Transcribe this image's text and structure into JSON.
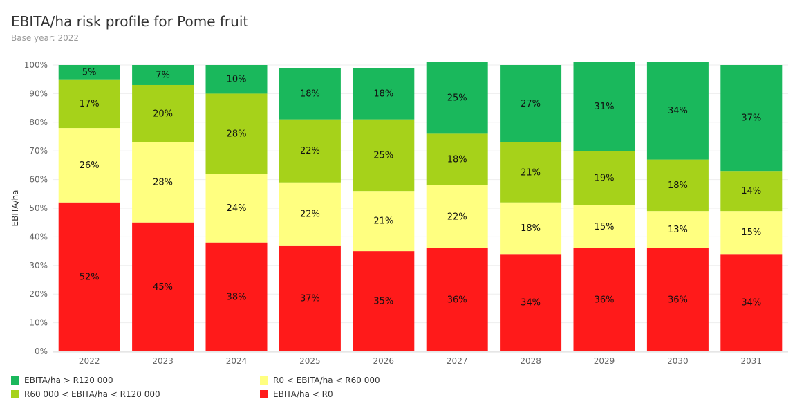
{
  "chart_data": {
    "type": "bar",
    "stacked": true,
    "title": "EBITA/ha risk profile for Pome fruit",
    "subtitle": "Base year: 2022",
    "ylabel": "EBITA/ha",
    "xlabel": "",
    "ylim": [
      0,
      100
    ],
    "yticks": [
      "0%",
      "10%",
      "20%",
      "30%",
      "40%",
      "50%",
      "60%",
      "70%",
      "80%",
      "90%",
      "100%"
    ],
    "categories": [
      "2022",
      "2023",
      "2024",
      "2025",
      "2026",
      "2027",
      "2028",
      "2029",
      "2030",
      "2031"
    ],
    "series": [
      {
        "name": "EBITA/ha < R0",
        "color": "#ff1a1a",
        "values": [
          52,
          45,
          38,
          37,
          35,
          36,
          34,
          36,
          36,
          34
        ],
        "labels": [
          "52%",
          "45%",
          "38%",
          "37%",
          "35%",
          "36%",
          "34%",
          "36%",
          "36%",
          "34%"
        ]
      },
      {
        "name": "R0 < EBITA/ha < R60 000",
        "color": "#ffff80",
        "values": [
          26,
          28,
          24,
          22,
          21,
          22,
          18,
          15,
          13,
          15
        ],
        "labels": [
          "26%",
          "28%",
          "24%",
          "22%",
          "21%",
          "22%",
          "18%",
          "15%",
          "13%",
          "15%"
        ]
      },
      {
        "name": "R60 000 < EBITA/ha < R120 000",
        "color": "#a6d21a",
        "values": [
          17,
          20,
          28,
          22,
          25,
          18,
          21,
          19,
          18,
          14
        ],
        "labels": [
          "17%",
          "20%",
          "28%",
          "22%",
          "25%",
          "18%",
          "21%",
          "19%",
          "18%",
          "14%"
        ]
      },
      {
        "name": "EBITA/ha > R120 000",
        "color": "#1ab85c",
        "values": [
          5,
          7,
          10,
          18,
          18,
          25,
          27,
          31,
          34,
          37
        ],
        "labels": [
          "5%",
          "7%",
          "10%",
          "18%",
          "18%",
          "25%",
          "27%",
          "31%",
          "34%",
          "37%"
        ]
      }
    ],
    "legend": {
      "position": "bottom",
      "items": [
        {
          "label": "EBITA/ha > R120 000",
          "color": "#1ab85c"
        },
        {
          "label": "R60 000 < EBITA/ha < R120 000",
          "color": "#a6d21a"
        },
        {
          "label": "R0 < EBITA/ha < R60 000",
          "color": "#ffff80"
        },
        {
          "label": "EBITA/ha < R0",
          "color": "#ff1a1a"
        }
      ]
    }
  }
}
